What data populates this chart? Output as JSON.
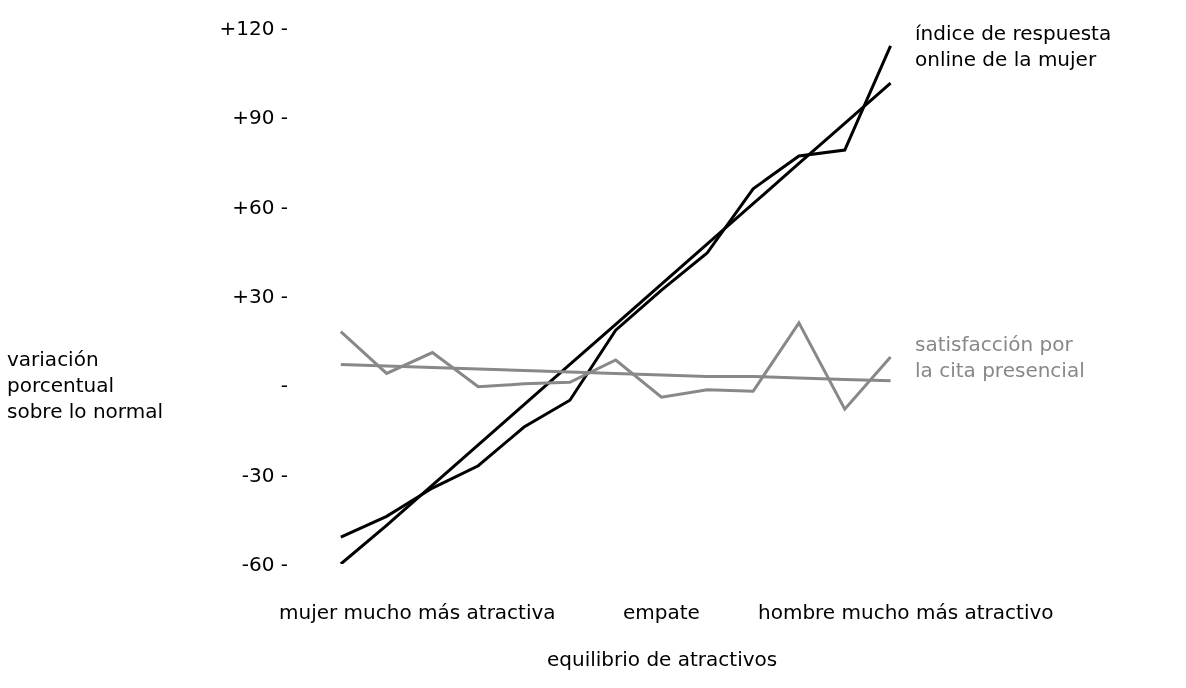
{
  "chart_data": {
    "type": "line",
    "xlabel": "equilibrio de atractivos",
    "ylabel": "variación\nporcentual\nsobre lo normal",
    "categories": [
      null,
      null,
      null,
      null,
      null,
      null,
      null,
      null,
      null,
      null,
      null,
      null,
      null
    ],
    "annotations": [
      "mujer mucho más atractiva",
      "empate",
      "hombre mucho más atractivo"
    ],
    "ylim": [
      -60,
      120
    ],
    "yticks": [
      {
        "value": -60,
        "label": "-60 -"
      },
      {
        "value": -30,
        "label": "-30 -"
      },
      {
        "value": 0,
        "label": "-"
      },
      {
        "value": 30,
        "label": "+30 -"
      },
      {
        "value": 60,
        "label": "+60 -"
      },
      {
        "value": 90,
        "label": "+90 -"
      },
      {
        "value": 120,
        "label": "+120 -"
      }
    ],
    "grid": false,
    "legend": false,
    "marker": "none",
    "line_style": "solid",
    "series": [
      {
        "name": "índice de respuesta\nonline de la mujer",
        "color": "#000000",
        "values": [
          -51,
          -44,
          -34.5,
          -27,
          -14,
          -5,
          18.5,
          32,
          44.5,
          66,
          77,
          79,
          114
        ]
      },
      {
        "color": "#000000",
        "values": [
          -60,
          -47,
          -33.5,
          -20,
          -6.5,
          7,
          20.5,
          34,
          47.5,
          61,
          74.5,
          88,
          101.5
        ]
      },
      {
        "name": "satisfacción por\nla cita presencial",
        "color": "#888888",
        "values": [
          18,
          4,
          11,
          -0.5,
          0.5,
          1,
          8.5,
          -4,
          -1.5,
          -2,
          21,
          -8,
          9.5
        ]
      },
      {
        "color": "#888888",
        "values": [
          7,
          6.5,
          6,
          5.5,
          5,
          4.5,
          4,
          3.5,
          3,
          3,
          2.5,
          2,
          1.5
        ]
      }
    ]
  }
}
